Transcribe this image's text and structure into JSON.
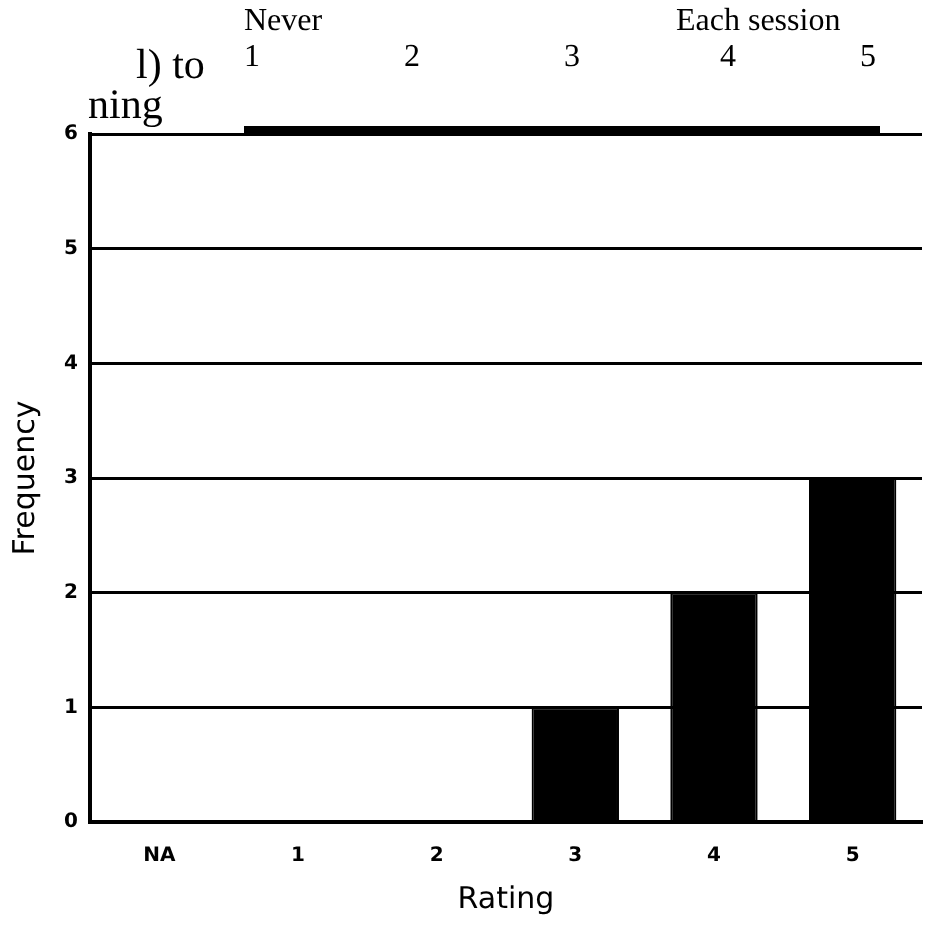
{
  "chart_data": {
    "type": "bar",
    "xlabel": "Rating",
    "ylabel": "Frequency",
    "categories": [
      "NA",
      "1",
      "2",
      "3",
      "4",
      "5"
    ],
    "values": [
      0,
      0,
      0,
      1,
      2,
      3
    ],
    "color": "#000000",
    "ylim": [
      0,
      6
    ],
    "yticks": [
      0,
      1,
      2,
      3,
      4,
      5,
      6
    ],
    "grid": "y",
    "legend": false,
    "annotations": [
      "l) to",
      "ning",
      "Never",
      "Each session",
      "1",
      "2",
      "3",
      "4",
      "5"
    ]
  }
}
